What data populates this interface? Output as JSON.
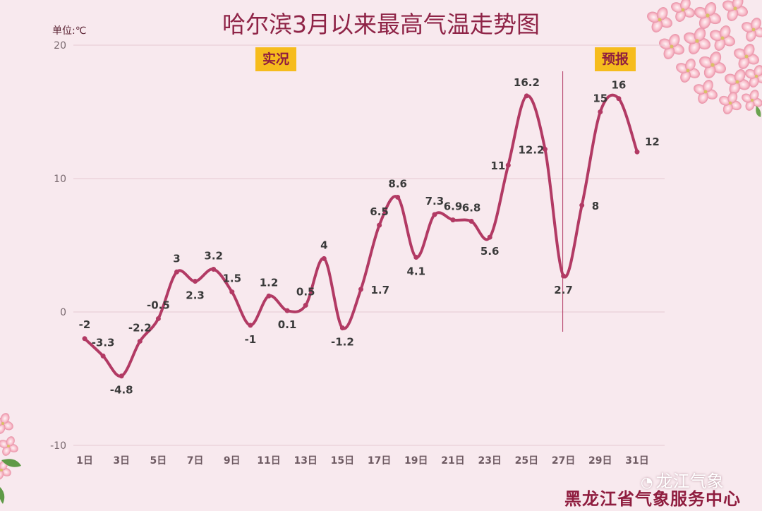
{
  "title": "哈尔滨3月以来最高气温走势图",
  "unit_label": "单位:℃",
  "tags": {
    "observed": "实况",
    "forecast": "预报"
  },
  "footer": "黑龙江省气象服务中心",
  "watermark": {
    "icon": "wechat-icon",
    "text": "龙江气象"
  },
  "colors": {
    "line": "#b23a64",
    "tag_bg": "#f6bc1d",
    "title": "#8f2447",
    "background": "#f8e9ee"
  },
  "chart_data": {
    "type": "line",
    "smooth": true,
    "x_tick_labels": [
      "1日",
      "3日",
      "5日",
      "7日",
      "9日",
      "11日",
      "13日",
      "15日",
      "17日",
      "19日",
      "21日",
      "23日",
      "25日",
      "27日",
      "29日",
      "31日"
    ],
    "y_tick_labels": [
      "20",
      "10",
      "0",
      "-10"
    ],
    "ylim": [
      -10,
      20
    ],
    "grid": true,
    "divider_after_day": 27,
    "x": [
      1,
      2,
      3,
      4,
      5,
      6,
      7,
      8,
      9,
      10,
      11,
      12,
      13,
      14,
      15,
      16,
      17,
      18,
      19,
      20,
      21,
      22,
      23,
      24,
      25,
      26,
      27,
      28,
      29,
      30,
      31
    ],
    "values": [
      -2,
      -3.3,
      -4.8,
      -2.2,
      -0.5,
      3,
      2.3,
      3.2,
      1.5,
      -1,
      1.2,
      0.1,
      0.5,
      4,
      -1.2,
      1.7,
      6.5,
      8.6,
      4.1,
      7.3,
      6.9,
      6.8,
      5.6,
      11,
      16.2,
      12.2,
      2.7,
      8,
      15,
      16,
      12
    ],
    "data_labels": [
      "-2",
      "-3.3",
      "-4.8",
      "-2.2",
      "-0.5",
      "3",
      "2.3",
      "3.2",
      "1.5",
      "-1",
      "1.2",
      "0.1",
      "0.5",
      "4",
      "-1.2",
      "1.7",
      "6.5",
      "8.6",
      "4.1",
      "7.3",
      "6.9",
      "6.8",
      "5.6",
      "11",
      "16.2",
      "12.2",
      "2.7",
      "8",
      "15",
      "16",
      "12"
    ]
  }
}
